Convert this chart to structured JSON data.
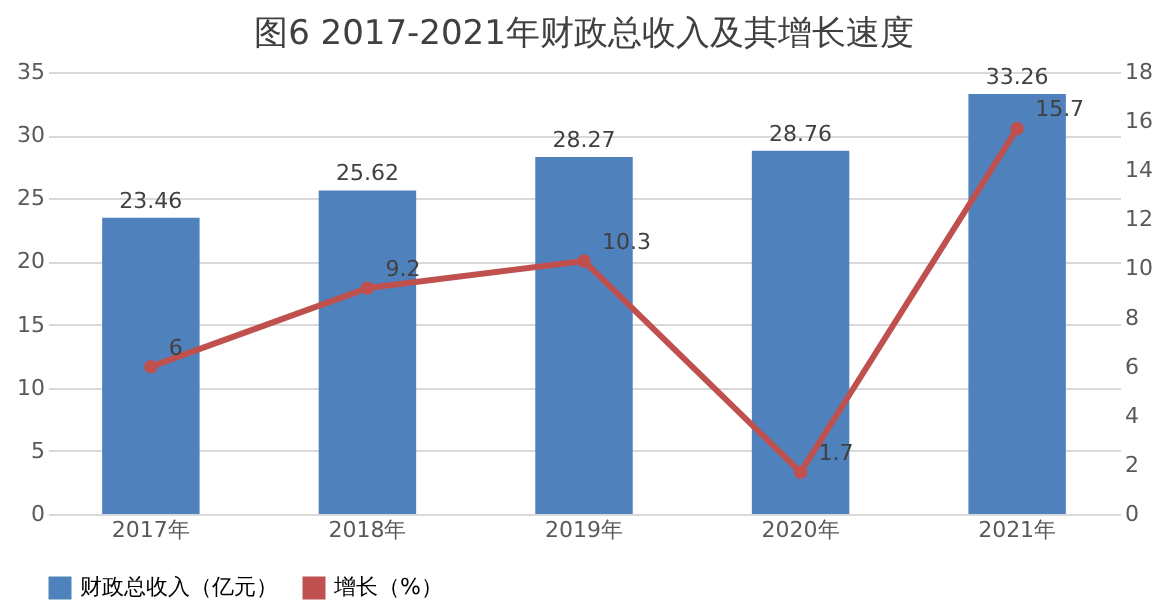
{
  "chart_data": {
    "type": "bar",
    "title": "图6  2017-2021年财政总收入及其增长速度",
    "categories": [
      "2017年",
      "2018年",
      "2019年",
      "2020年",
      "2021年"
    ],
    "series": [
      {
        "name": "财政总收入（亿元）",
        "color": "#4f81bd",
        "values": [
          23.46,
          25.62,
          28.27,
          28.76,
          33.26
        ]
      },
      {
        "name": "增长（%）",
        "color": "#c0504d",
        "type": "line",
        "axis": "y2",
        "marker": "circle",
        "values": [
          6,
          9.2,
          10.3,
          1.7,
          15.7
        ]
      }
    ],
    "ylim": [
      0,
      35
    ],
    "yticks": [
      0,
      5,
      10,
      15,
      20,
      25,
      30,
      35
    ],
    "y2lim": [
      0,
      18
    ],
    "y2ticks": [
      0,
      2,
      4,
      6,
      8,
      10,
      12,
      14,
      16,
      18
    ],
    "grid": "y",
    "legend": "bottom",
    "data_labels": true
  }
}
